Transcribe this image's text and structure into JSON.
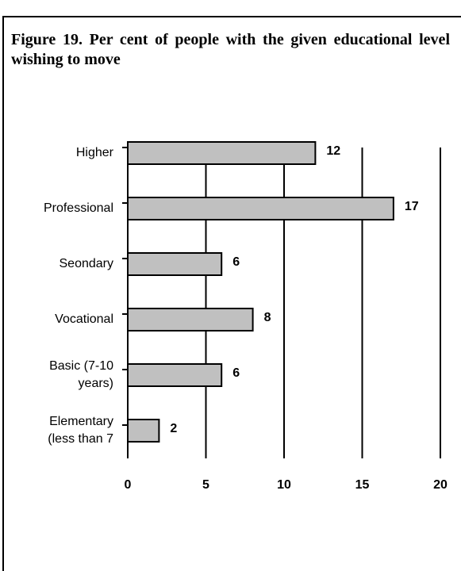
{
  "chart_data": {
    "type": "bar",
    "orientation": "horizontal",
    "title": "Figure 19. Per cent of people with the given educational level wishing to move",
    "categories": [
      "Higher",
      "Professional",
      "Seondary",
      "Vocational",
      "Basic (7-10 years)",
      "Elementary (less than 7"
    ],
    "values": [
      12,
      17,
      6,
      8,
      6,
      2
    ],
    "color": "#c0c0c0",
    "xlim": [
      0,
      20
    ],
    "xticks": [
      0,
      5,
      10,
      15,
      20
    ],
    "grid": true
  }
}
